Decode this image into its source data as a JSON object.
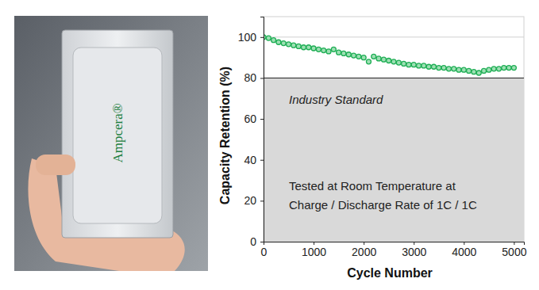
{
  "photo": {
    "label": "Ampcera®"
  },
  "chart_data": {
    "type": "scatter",
    "x_label": "Cycle Number",
    "y_label": "Capacity Retention (%)",
    "x": [
      0,
      100,
      200,
      300,
      400,
      500,
      600,
      700,
      800,
      900,
      1000,
      1100,
      1200,
      1300,
      1400,
      1500,
      1600,
      1700,
      1800,
      1900,
      2000,
      2100,
      2200,
      2300,
      2400,
      2500,
      2600,
      2700,
      2800,
      2900,
      3000,
      3100,
      3200,
      3300,
      3400,
      3500,
      3600,
      3700,
      3800,
      3900,
      4000,
      4100,
      4200,
      4300,
      4400,
      4500,
      4600,
      4700,
      4800,
      4900,
      5000
    ],
    "values": [
      100,
      99.5,
      98.5,
      97.5,
      97,
      96.5,
      96,
      95.5,
      95,
      95,
      94.5,
      94,
      93.5,
      93,
      94,
      92.5,
      92,
      91.5,
      91,
      90.5,
      90,
      88,
      90.5,
      89.5,
      89,
      88.5,
      88,
      87.5,
      87,
      86.5,
      86.5,
      86,
      86,
      85.5,
      85.5,
      85,
      85,
      84.5,
      84.5,
      84,
      84,
      83.5,
      83,
      82.5,
      83.5,
      84,
      84.5,
      84.5,
      85,
      85,
      85
    ],
    "color": "#1fae55",
    "marker": "circle",
    "xlim": [
      0,
      5200
    ],
    "xticks": [
      0,
      1000,
      2000,
      3000,
      4000,
      5000
    ],
    "ylim": [
      0,
      110
    ],
    "yticks": [
      0,
      20,
      40,
      60,
      80,
      100
    ],
    "grid": true,
    "reference": {
      "value": 80,
      "label": "Industry Standard"
    },
    "annotations": [
      "Tested at Room Temperature at",
      "Charge / Discharge Rate of 1C / 1C"
    ]
  }
}
